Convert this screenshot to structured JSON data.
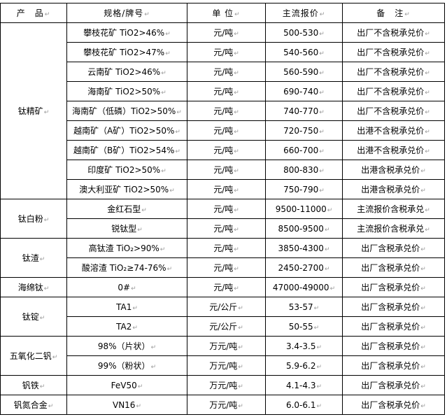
{
  "header": {
    "product": "产　品",
    "spec": "规格/牌号",
    "unit": "单 位",
    "price": "主流报价",
    "note": "备　注"
  },
  "groups": [
    {
      "product": "钛精矿",
      "rows": [
        {
          "spec": "攀枝花矿 TiO2>46%",
          "unit": "元/吨",
          "price": "500-530",
          "note": "出厂不含税承兑价"
        },
        {
          "spec": "攀枝花矿 TiO2>47%",
          "unit": "元/吨",
          "price": "540-560",
          "note": "出厂不含税承兑价"
        },
        {
          "spec": "云南矿 TiO2>46%",
          "unit": "元/吨",
          "price": "560-590",
          "note": "出厂不含税承兑价"
        },
        {
          "spec": "海南矿 TiO2>50%",
          "unit": "元/吨",
          "price": "690-740",
          "note": "出厂不含税承兑价"
        },
        {
          "spec": "海南矿（低磷）TiO2>50%",
          "unit": "元/吨",
          "price": "740-770",
          "note": "出厂不含税承兑价"
        },
        {
          "spec": "越南矿（A矿）TiO2>50%",
          "unit": "元/吨",
          "price": "720-750",
          "note": "出港不含税承兑价"
        },
        {
          "spec": "越南矿（B矿）TiO2>54%",
          "unit": "元/吨",
          "price": "660-700",
          "note": "出港不含税承兑价"
        },
        {
          "spec": "印度矿 TiO2>50%",
          "unit": "元/吨",
          "price": "800-830",
          "note": "出港含税承兑价"
        },
        {
          "spec": "澳大利亚矿 TiO2>50%",
          "unit": "元/吨",
          "price": "750-790",
          "note": "出港含税承兑价"
        }
      ]
    },
    {
      "product": "钛白粉",
      "rows": [
        {
          "spec": "金红石型",
          "unit": "元/吨",
          "price": "9500-11000",
          "note": "主流报价含税承兑"
        },
        {
          "spec": "锐钛型",
          "unit": "元/吨",
          "price": "8500-9500",
          "note": "主流报价含税承兑"
        }
      ]
    },
    {
      "product": "钛渣",
      "rows": [
        {
          "spec": "高钛渣 TiO₂>90%",
          "unit": "元/吨",
          "price": "3850-4300",
          "note": "出厂含税承兑价"
        },
        {
          "spec": "酸溶渣 TiO₂≥74-76%",
          "unit": "元/吨",
          "price": "2450-2700",
          "note": "出厂含税承兑价"
        }
      ]
    },
    {
      "product": "海绵钛",
      "rows": [
        {
          "spec": "0#",
          "unit": "元/吨",
          "price": "47000-49000",
          "note": "出厂含税承兑价"
        }
      ]
    },
    {
      "product": "钛锭",
      "rows": [
        {
          "spec": "TA1",
          "unit": "元/公斤",
          "price": "53-57",
          "note": "出厂含税承兑价"
        },
        {
          "spec": "TA2",
          "unit": "元/公斤",
          "price": "50-55",
          "note": "出厂含税承兑价"
        }
      ]
    },
    {
      "product": "五氧化二钒",
      "rows": [
        {
          "spec": "98%（片状）",
          "unit": "万元/吨",
          "price": "3.4-3.5",
          "note": "出厂含税承兑价"
        },
        {
          "spec": "99%（粉状）",
          "unit": "万元/吨",
          "price": "5.9-6.2",
          "note": "出厂含税承兑价"
        }
      ]
    },
    {
      "product": "钒铁",
      "rows": [
        {
          "spec": "FeV50",
          "unit": "万元/吨",
          "price": "4.1-4.3",
          "note": "出厂含税承兑价"
        }
      ]
    },
    {
      "product": "钒氮合金",
      "rows": [
        {
          "spec": "VN16",
          "unit": "万元/吨",
          "price": "6.0-6.1",
          "note": "出厂含税承兑价"
        }
      ]
    }
  ]
}
